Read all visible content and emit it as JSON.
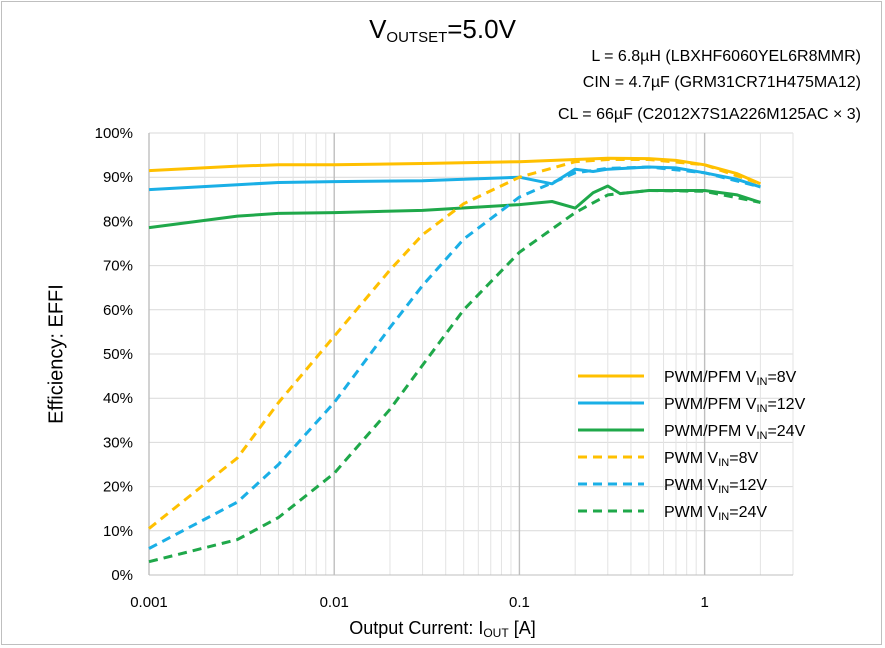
{
  "title": {
    "main": "V",
    "sub": "OUTSET",
    "suffix": "=5.0V"
  },
  "conditions": [
    "L = 6.8µH (LBXHF6060YEL6R8MMR)",
    "CIN = 4.7µF (GRM31CR71H475MA12)",
    "CL = 66µF (C2012X7S1A226M125AC × 3)"
  ],
  "axis": {
    "ylabel": "Efficiency: EFFI",
    "xlabel_main": "Output Current: I",
    "xlabel_sub": "OUT",
    "xlabel_suffix": " [A]"
  },
  "chart_data": {
    "type": "line",
    "x_scale": "log",
    "xlim": [
      0.001,
      3
    ],
    "ylim": [
      0,
      100
    ],
    "x_ticks": [
      "0.001",
      "0.01",
      "0.1",
      "1"
    ],
    "y_ticks": [
      "0%",
      "10%",
      "20%",
      "30%",
      "40%",
      "50%",
      "60%",
      "70%",
      "80%",
      "90%",
      "100%"
    ],
    "grid": true,
    "legend_position": "bottom-right",
    "series": [
      {
        "name": "PWM/PFM V_IN=8V",
        "label_main": "PWM/PFM V",
        "label_sub": "IN",
        "label_suffix": "=8V",
        "color": "#FFC000",
        "dash": "solid",
        "x": [
          0.001,
          0.003,
          0.005,
          0.01,
          0.03,
          0.1,
          0.2,
          0.3,
          0.5,
          0.7,
          1,
          1.5,
          2
        ],
        "y": [
          91.5,
          92.5,
          92.8,
          92.8,
          93.1,
          93.5,
          94.0,
          94.3,
          94.2,
          93.8,
          92.8,
          90.8,
          88.5
        ]
      },
      {
        "name": "PWM/PFM V_IN=12V",
        "label_main": "PWM/PFM V",
        "label_sub": "IN",
        "label_suffix": "=12V",
        "color": "#1AAFE6",
        "dash": "solid",
        "x": [
          0.001,
          0.003,
          0.005,
          0.01,
          0.03,
          0.1,
          0.15,
          0.2,
          0.25,
          0.3,
          0.5,
          0.7,
          1,
          1.5,
          2
        ],
        "y": [
          87.2,
          88.3,
          88.8,
          89.0,
          89.2,
          90.0,
          88.5,
          91.8,
          91.3,
          91.8,
          92.3,
          92.1,
          91.0,
          89.5,
          87.8
        ]
      },
      {
        "name": "PWM/PFM V_IN=24V",
        "label_main": "PWM/PFM V",
        "label_sub": "IN",
        "label_suffix": "=24V",
        "color": "#1FA84A",
        "dash": "solid",
        "x": [
          0.001,
          0.003,
          0.005,
          0.01,
          0.03,
          0.1,
          0.15,
          0.2,
          0.25,
          0.3,
          0.35,
          0.5,
          1,
          1.5,
          2
        ],
        "y": [
          78.6,
          81.2,
          81.8,
          82.0,
          82.5,
          83.8,
          84.5,
          83.0,
          86.5,
          88.0,
          86.3,
          87.0,
          87.0,
          86.0,
          84.3
        ]
      },
      {
        "name": "PWM V_IN=8V",
        "label_main": "PWM V",
        "label_sub": "IN",
        "label_suffix": "=8V",
        "color": "#FFC000",
        "dash": "dashed",
        "x": [
          0.001,
          0.003,
          0.005,
          0.01,
          0.02,
          0.03,
          0.05,
          0.1,
          0.2,
          0.3,
          0.5,
          1,
          2
        ],
        "y": [
          10.5,
          26.5,
          39.0,
          54.0,
          69.0,
          77.0,
          84.0,
          90.0,
          93.5,
          94.0,
          94.0,
          92.8,
          88.5
        ]
      },
      {
        "name": "PWM V_IN=12V",
        "label_main": "PWM V",
        "label_sub": "IN",
        "label_suffix": "=12V",
        "color": "#1AAFE6",
        "dash": "dashed",
        "x": [
          0.001,
          0.003,
          0.005,
          0.01,
          0.02,
          0.03,
          0.05,
          0.1,
          0.2,
          0.3,
          0.5,
          1,
          2
        ],
        "y": [
          6.0,
          16.5,
          25.0,
          39.0,
          56.0,
          65.5,
          76.0,
          85.5,
          91.0,
          92.0,
          92.3,
          91.0,
          87.8
        ]
      },
      {
        "name": "PWM V_IN=24V",
        "label_main": "PWM V",
        "label_sub": "IN",
        "label_suffix": "=24V",
        "color": "#1FA84A",
        "dash": "dashed",
        "x": [
          0.001,
          0.003,
          0.005,
          0.01,
          0.02,
          0.03,
          0.05,
          0.1,
          0.2,
          0.3,
          0.5,
          1,
          2
        ],
        "y": [
          3.0,
          8.0,
          13.0,
          23.0,
          37.5,
          47.5,
          60.0,
          73.0,
          82.0,
          86.0,
          87.0,
          86.8,
          84.3
        ]
      }
    ]
  }
}
